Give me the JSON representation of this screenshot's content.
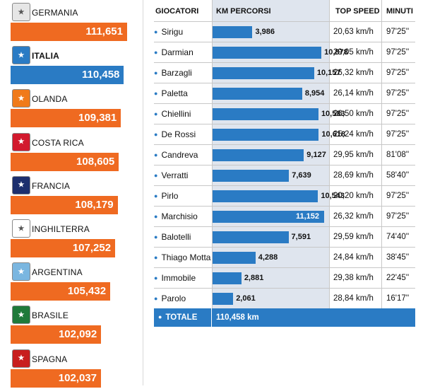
{
  "teams": [
    {
      "name": "GERMANIA",
      "km": 111651,
      "km_label": "111,651",
      "crest_color": "#e6e6e6",
      "crest_glyph": "germany-crest",
      "highlight": false
    },
    {
      "name": "ITALIA",
      "km": 110458,
      "km_label": "110,458",
      "crest_color": "#2a7bc4",
      "crest_glyph": "italy-crest",
      "highlight": true
    },
    {
      "name": "OLANDA",
      "km": 109381,
      "km_label": "109,381",
      "crest_color": "#f07a1a",
      "crest_glyph": "netherlands-crest",
      "highlight": false
    },
    {
      "name": "COSTA RICA",
      "km": 108605,
      "km_label": "108,605",
      "crest_color": "#d21a2e",
      "crest_glyph": "costa-rica-crest",
      "highlight": false
    },
    {
      "name": "FRANCIA",
      "km": 108179,
      "km_label": "108,179",
      "crest_color": "#1c2f6e",
      "crest_glyph": "france-crest",
      "highlight": false
    },
    {
      "name": "INGHILTERRA",
      "km": 107252,
      "km_label": "107,252",
      "crest_color": "#ffffff",
      "crest_glyph": "england-crest",
      "highlight": false
    },
    {
      "name": "ARGENTINA",
      "km": 105432,
      "km_label": "105,432",
      "crest_color": "#7ab6e0",
      "crest_glyph": "argentina-crest",
      "highlight": false
    },
    {
      "name": "BRASILE",
      "km": 102092,
      "km_label": "102,092",
      "crest_color": "#1f7a3a",
      "crest_glyph": "brazil-crest",
      "highlight": false
    },
    {
      "name": "SPAGNA",
      "km": 102037,
      "km_label": "102,037",
      "crest_color": "#c81e1e",
      "crest_glyph": "spain-crest",
      "highlight": false
    }
  ],
  "headers": {
    "players": "GIOCATORI",
    "km": "KM PERCORSI",
    "speed": "TOP SPEED",
    "minutes": "MINUTI"
  },
  "chart_data": {
    "type": "bar",
    "categories": [
      "Sirigu",
      "Darmian",
      "Barzagli",
      "Paletta",
      "Chiellini",
      "De Rossi",
      "Candreva",
      "Verratti",
      "Pirlo",
      "Marchisio",
      "Balotelli",
      "Thiago Motta",
      "Immobile",
      "Parolo"
    ],
    "values": [
      3986,
      10878,
      10157,
      8954,
      10583,
      10618,
      9127,
      7639,
      10543,
      11152,
      7591,
      4288,
      2881,
      2061
    ],
    "value_labels": [
      "3,986",
      "10,878",
      "10,157",
      "8,954",
      "10,583",
      "10,618",
      "9,127",
      "7,639",
      "10,543",
      "11,152",
      "7,591",
      "4,288",
      "2,881",
      "2,061"
    ],
    "top_speed": [
      "20,63 km/h",
      "29,05 km/h",
      "26,32 km/h",
      "26,14 km/h",
      "26,50 km/h",
      "25,24 km/h",
      "29,95 km/h",
      "28,69 km/h",
      "20,20 km/h",
      "26,32 km/h",
      "29,59 km/h",
      "24,84 km/h",
      "29,38 km/h",
      "28,84 km/h"
    ],
    "minutes": [
      "97'25''",
      "97'25''",
      "97'25''",
      "97'25''",
      "97'25''",
      "97'25''",
      "81'08''",
      "58'40''",
      "97'25''",
      "97'25''",
      "74'40''",
      "38'45''",
      "22'45''",
      "16'17''"
    ],
    "total_label": "TOTALE",
    "total_value": "110,458 km",
    "team_max": 111651,
    "bar_color": "#2a7bc4",
    "team_bar_color": "#ef6a21"
  }
}
